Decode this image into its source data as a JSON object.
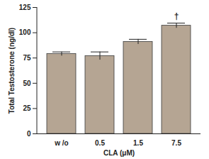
{
  "chart_data": {
    "type": "bar",
    "categories": [
      "w /o",
      "0.5",
      "1.5",
      "7.5"
    ],
    "values": [
      79,
      77,
      91,
      107
    ],
    "errors": [
      2,
      4,
      2.5,
      2.5
    ],
    "color": "#b5a593",
    "x_label": "CLA (μM)",
    "y_label": "Total Testosterone (ng/dl)",
    "ylim": [
      0,
      125
    ],
    "yticks": [
      0,
      25,
      50,
      75,
      100,
      125
    ],
    "grid": false,
    "annotations": [
      {
        "text": "†",
        "category": "7.5"
      }
    ]
  }
}
